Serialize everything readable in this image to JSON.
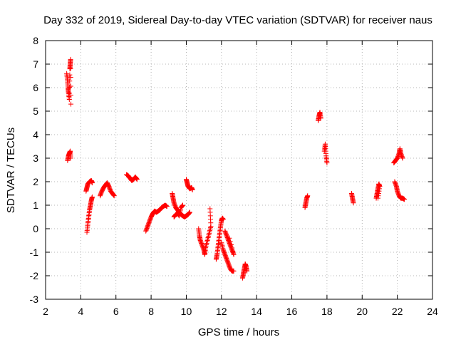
{
  "chart_data": {
    "type": "scatter",
    "title": "Day 332 of 2019, Sidereal Day-to-day VTEC variation (SDTVAR) for receiver naus",
    "xlabel": "GPS time / hours",
    "ylabel": "SDTVAR / TECUs",
    "xlim": [
      2,
      24
    ],
    "ylim": [
      -3,
      8
    ],
    "xticks": [
      2,
      4,
      6,
      8,
      10,
      12,
      14,
      16,
      18,
      20,
      22,
      24
    ],
    "yticks": [
      -3,
      -2,
      -1,
      0,
      1,
      2,
      3,
      4,
      5,
      6,
      7,
      8
    ],
    "grid": true,
    "marker": "+",
    "color": "#ff0000",
    "segments": [
      [
        [
          3.2,
          6.6
        ],
        [
          3.25,
          6.3
        ],
        [
          3.28,
          6.0
        ],
        [
          3.3,
          5.8
        ],
        [
          3.35,
          5.5
        ],
        [
          3.38,
          6.8
        ],
        [
          3.4,
          7.0
        ],
        [
          3.42,
          7.2
        ],
        [
          3.44,
          5.3
        ]
      ],
      [
        [
          3.25,
          2.9
        ],
        [
          3.3,
          3.1
        ],
        [
          3.35,
          3.2
        ],
        [
          3.4,
          3.3
        ],
        [
          3.42,
          3.0
        ]
      ],
      [
        [
          4.35,
          -0.15
        ],
        [
          4.4,
          0.2
        ],
        [
          4.45,
          0.5
        ],
        [
          4.5,
          0.8
        ],
        [
          4.55,
          1.0
        ],
        [
          4.6,
          1.2
        ],
        [
          4.65,
          1.35
        ]
      ],
      [
        [
          4.3,
          1.6
        ],
        [
          4.35,
          1.75
        ],
        [
          4.4,
          1.9
        ],
        [
          4.5,
          2.0
        ],
        [
          4.6,
          2.05
        ],
        [
          4.65,
          1.95
        ]
      ],
      [
        [
          5.1,
          1.4
        ],
        [
          5.2,
          1.6
        ],
        [
          5.3,
          1.75
        ],
        [
          5.4,
          1.85
        ],
        [
          5.5,
          1.95
        ],
        [
          5.6,
          1.8
        ],
        [
          5.7,
          1.6
        ],
        [
          5.8,
          1.5
        ],
        [
          5.9,
          1.4
        ]
      ],
      [
        [
          6.6,
          2.3
        ],
        [
          6.7,
          2.25
        ],
        [
          6.8,
          2.15
        ],
        [
          6.9,
          2.05
        ],
        [
          7.0,
          2.1
        ],
        [
          7.1,
          2.2
        ],
        [
          7.2,
          2.1
        ]
      ],
      [
        [
          7.7,
          -0.1
        ],
        [
          7.8,
          0.1
        ],
        [
          7.9,
          0.3
        ],
        [
          8.0,
          0.5
        ],
        [
          8.1,
          0.65
        ],
        [
          8.2,
          0.75
        ],
        [
          8.3,
          0.7
        ],
        [
          8.4,
          0.75
        ],
        [
          8.5,
          0.8
        ],
        [
          8.6,
          0.9
        ],
        [
          8.7,
          0.95
        ],
        [
          8.8,
          1.0
        ],
        [
          8.9,
          0.95
        ]
      ],
      [
        [
          9.2,
          1.5
        ],
        [
          9.25,
          1.3
        ],
        [
          9.3,
          1.1
        ],
        [
          9.4,
          0.9
        ],
        [
          9.5,
          0.8
        ],
        [
          9.6,
          0.7
        ],
        [
          9.7,
          0.6
        ],
        [
          9.8,
          0.55
        ],
        [
          9.9,
          0.5
        ],
        [
          10.0,
          0.55
        ],
        [
          10.1,
          0.6
        ],
        [
          10.2,
          0.7
        ]
      ],
      [
        [
          9.3,
          0.5
        ],
        [
          9.4,
          0.6
        ],
        [
          9.5,
          0.65
        ],
        [
          9.6,
          0.55
        ],
        [
          9.7,
          0.9
        ],
        [
          9.8,
          1.0
        ]
      ],
      [
        [
          10.0,
          2.1
        ],
        [
          10.05,
          1.95
        ],
        [
          10.1,
          1.8
        ],
        [
          10.2,
          1.7
        ],
        [
          10.3,
          1.75
        ],
        [
          10.35,
          1.65
        ]
      ],
      [
        [
          10.7,
          0.0
        ],
        [
          10.75,
          -0.3
        ],
        [
          10.8,
          -0.5
        ],
        [
          10.9,
          -0.7
        ],
        [
          11.0,
          -0.9
        ],
        [
          11.05,
          -1.1
        ],
        [
          11.1,
          -0.8
        ],
        [
          11.2,
          -0.5
        ],
        [
          11.3,
          -0.2
        ],
        [
          11.4,
          0.1
        ],
        [
          11.35,
          0.85
        ]
      ],
      [
        [
          11.7,
          -1.3
        ],
        [
          11.75,
          -1.1
        ],
        [
          11.8,
          -0.8
        ],
        [
          11.85,
          -0.5
        ],
        [
          11.9,
          -0.2
        ],
        [
          11.95,
          0.1
        ],
        [
          12.0,
          0.35
        ],
        [
          12.05,
          0.45
        ],
        [
          12.1,
          0.4
        ]
      ],
      [
        [
          12.0,
          -0.6
        ],
        [
          12.1,
          -0.9
        ],
        [
          12.2,
          -1.1
        ],
        [
          12.3,
          -1.3
        ],
        [
          12.4,
          -1.5
        ],
        [
          12.5,
          -1.7
        ],
        [
          12.6,
          -1.8
        ],
        [
          12.7,
          -1.8
        ]
      ],
      [
        [
          12.2,
          -0.1
        ],
        [
          12.3,
          -0.3
        ],
        [
          12.4,
          -0.5
        ],
        [
          12.5,
          -0.7
        ],
        [
          12.6,
          -0.9
        ],
        [
          12.7,
          -1.1
        ],
        [
          12.45,
          -0.4
        ]
      ],
      [
        [
          13.2,
          -2.1
        ],
        [
          13.25,
          -1.9
        ],
        [
          13.3,
          -1.7
        ],
        [
          13.35,
          -1.5
        ],
        [
          13.4,
          -1.6
        ],
        [
          13.45,
          -1.8
        ]
      ],
      [
        [
          16.75,
          0.9
        ],
        [
          16.8,
          1.1
        ],
        [
          16.85,
          1.3
        ],
        [
          16.9,
          1.4
        ]
      ],
      [
        [
          17.5,
          4.6
        ],
        [
          17.55,
          4.8
        ],
        [
          17.6,
          4.95
        ],
        [
          17.65,
          4.7
        ]
      ],
      [
        [
          17.85,
          3.3
        ],
        [
          17.9,
          3.6
        ],
        [
          17.95,
          3.1
        ],
        [
          18.0,
          2.8
        ]
      ],
      [
        [
          19.4,
          1.5
        ],
        [
          19.45,
          1.3
        ],
        [
          19.5,
          1.1
        ]
      ],
      [
        [
          20.8,
          1.3
        ],
        [
          20.85,
          1.5
        ],
        [
          20.9,
          1.7
        ],
        [
          20.95,
          1.9
        ],
        [
          21.0,
          1.8
        ],
        [
          20.9,
          1.3
        ]
      ],
      [
        [
          21.8,
          2.8
        ],
        [
          21.9,
          2.9
        ],
        [
          22.0,
          3.0
        ],
        [
          22.1,
          3.2
        ],
        [
          22.15,
          3.4
        ],
        [
          22.2,
          3.2
        ],
        [
          22.3,
          3.0
        ]
      ],
      [
        [
          21.85,
          2.0
        ],
        [
          21.95,
          1.8
        ],
        [
          22.0,
          1.6
        ],
        [
          22.1,
          1.4
        ],
        [
          22.2,
          1.3
        ],
        [
          22.3,
          1.3
        ],
        [
          22.4,
          1.25
        ]
      ]
    ]
  }
}
